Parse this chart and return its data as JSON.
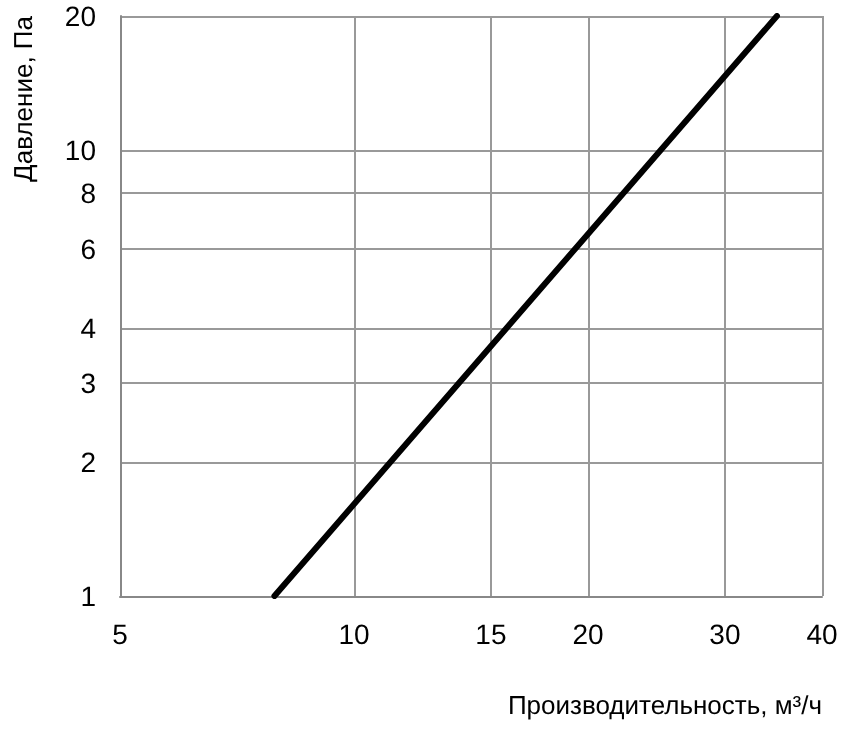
{
  "chart_data": {
    "type": "line",
    "xlabel": "Производительность, м³/ч",
    "ylabel": "Давление, Па",
    "log": "xy",
    "grid": true,
    "marker": "none",
    "line_style": "solid",
    "xlim": [
      5,
      40
    ],
    "xticks": [
      5,
      10,
      15,
      20,
      30,
      40
    ],
    "ylim": [
      1,
      20
    ],
    "yticks": [
      1,
      2,
      3,
      4,
      6,
      8,
      10,
      20
    ],
    "series": [
      {
        "color": "#000000",
        "x": [
          7.9,
          35
        ],
        "values": [
          1,
          20
        ]
      }
    ]
  }
}
